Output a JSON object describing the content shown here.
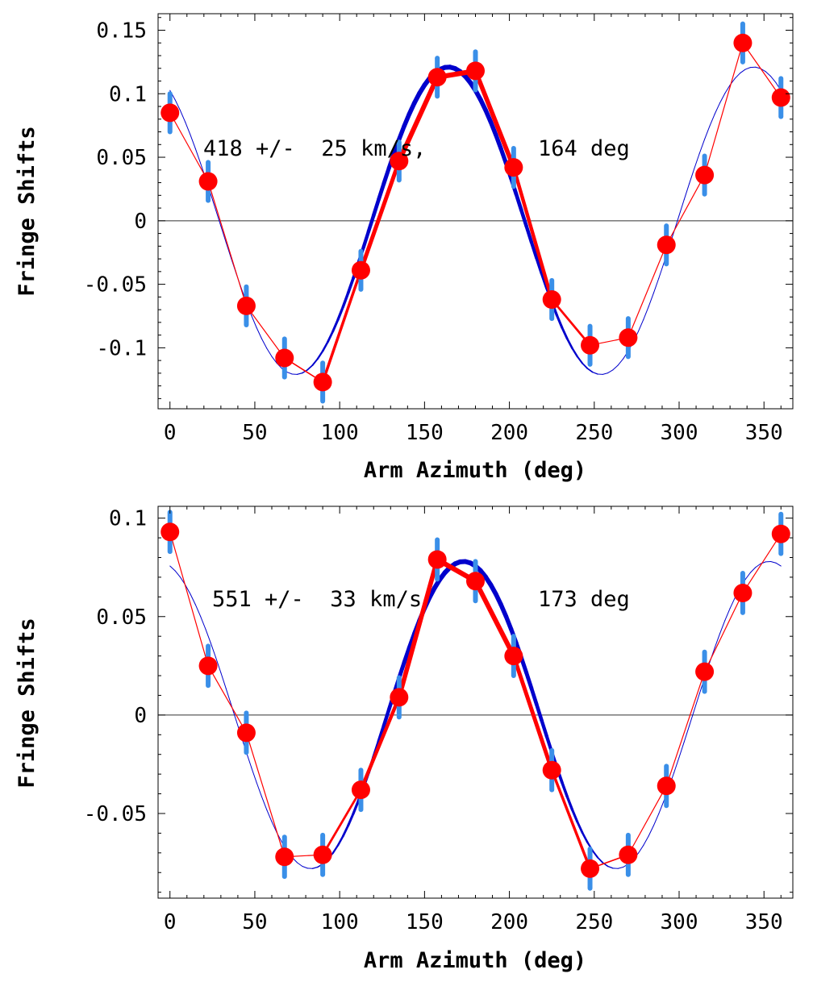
{
  "chart_data": [
    {
      "type": "line",
      "title": "",
      "xlabel": "Arm Azimuth (deg)",
      "ylabel": "Fringe Shifts",
      "xlim": [
        -7,
        367
      ],
      "ylim": [
        -0.148,
        0.163
      ],
      "xticks": [
        0,
        50,
        100,
        150,
        200,
        250,
        300,
        350
      ],
      "xtick_labels": [
        "0",
        "50",
        "100",
        "150",
        "200",
        "250",
        "300",
        "350"
      ],
      "yticks": [
        0.15,
        0.1,
        0.05,
        0,
        -0.05,
        -0.1
      ],
      "ytick_labels": [
        "0.15",
        "0.1",
        "0.05",
        "0",
        "-0.05",
        "-0.1"
      ],
      "annotation": {
        "speed": "418 +/-  25 km/s,",
        "azimuth": "164 deg"
      },
      "zero_line": true,
      "error_half_width": 0.015,
      "measurements": {
        "name": "measured fringe shifts",
        "color": "#ff0000",
        "x": [
          0,
          22.5,
          45,
          67.5,
          90,
          112.5,
          135,
          157.5,
          180,
          202.5,
          225,
          247.5,
          270,
          292.5,
          315,
          337.5,
          360
        ],
        "y": [
          0.085,
          0.031,
          -0.067,
          -0.108,
          -0.127,
          -0.039,
          0.047,
          0.113,
          0.118,
          0.042,
          -0.062,
          -0.098,
          -0.092,
          -0.019,
          0.036,
          0.14,
          0.097
        ]
      },
      "fit": {
        "name": "sinusoidal fit",
        "color": "#0000cc",
        "amplitude": 0.121,
        "phase_deg": 164
      },
      "error_color": "#3a8fe8"
    },
    {
      "type": "line",
      "title": "",
      "xlabel": "Arm Azimuth (deg)",
      "ylabel": "Fringe Shifts",
      "xlim": [
        -7,
        367
      ],
      "ylim": [
        -0.093,
        0.106
      ],
      "xticks": [
        0,
        50,
        100,
        150,
        200,
        250,
        300,
        350
      ],
      "xtick_labels": [
        "0",
        "50",
        "100",
        "150",
        "200",
        "250",
        "300",
        "350"
      ],
      "yticks": [
        0.1,
        0.05,
        0,
        -0.05
      ],
      "ytick_labels": [
        "0.1",
        "0.05",
        "0",
        "-0.05"
      ],
      "annotation": {
        "speed": "551 +/-  33 km/s",
        "azimuth": "173 deg"
      },
      "zero_line": true,
      "error_half_width": 0.01,
      "measurements": {
        "name": "measured fringe shifts",
        "color": "#ff0000",
        "x": [
          0,
          22.5,
          45,
          67.5,
          90,
          112.5,
          135,
          157.5,
          180,
          202.5,
          225,
          247.5,
          270,
          292.5,
          315,
          337.5,
          360
        ],
        "y": [
          0.093,
          0.025,
          -0.009,
          -0.072,
          -0.071,
          -0.038,
          0.009,
          0.079,
          0.068,
          0.03,
          -0.028,
          -0.078,
          -0.071,
          -0.036,
          0.022,
          0.062,
          0.092
        ]
      },
      "fit": {
        "name": "sinusoidal fit",
        "color": "#0000cc",
        "amplitude": 0.078,
        "phase_deg": 173
      },
      "error_color": "#3a8fe8"
    }
  ]
}
